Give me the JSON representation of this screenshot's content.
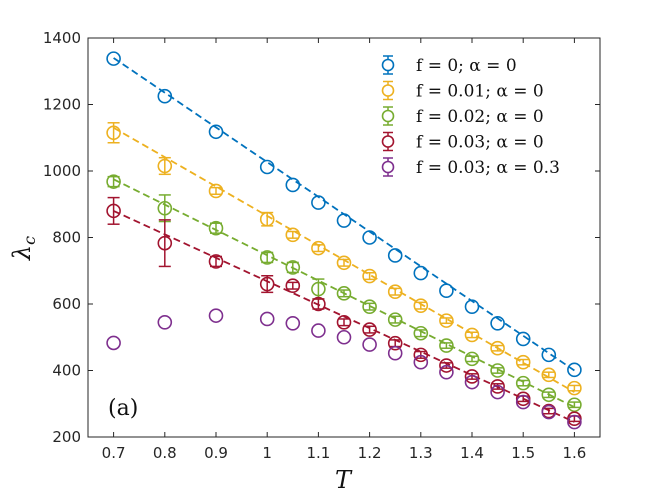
{
  "chart_data": {
    "type": "scatter",
    "panel_label": "(a)",
    "xlabel": "T",
    "ylabel": "λc",
    "xlim": [
      0.65,
      1.65
    ],
    "ylim": [
      200,
      1400
    ],
    "xticks": [
      0.7,
      0.8,
      0.9,
      1,
      1.1,
      1.2,
      1.3,
      1.4,
      1.5,
      1.6
    ],
    "xtick_labels": [
      "0.7",
      "0.8",
      "0.9",
      "1",
      "1.1",
      "1.2",
      "1.3",
      "1.4",
      "1.5",
      "1.6"
    ],
    "yticks": [
      200,
      400,
      600,
      800,
      1000,
      1200,
      1400
    ],
    "ytick_labels": [
      "200",
      "400",
      "600",
      "800",
      "1000",
      "1200",
      "1400"
    ],
    "legend_position": "top-right",
    "series": [
      {
        "name": "f = 0; α = 0",
        "color": "#0072BD",
        "fit_line": [
          [
            0.7,
            1340
          ],
          [
            1.6,
            400
          ]
        ],
        "x": [
          0.7,
          0.8,
          0.9,
          1.0,
          1.05,
          1.1,
          1.15,
          1.2,
          1.25,
          1.3,
          1.35,
          1.4,
          1.45,
          1.5,
          1.55,
          1.6
        ],
        "y": [
          1338,
          1225,
          1118,
          1012,
          958,
          905,
          851,
          800,
          746,
          693,
          640,
          592,
          542,
          495,
          447,
          402
        ],
        "err": [
          0,
          0,
          0,
          0,
          0,
          0,
          0,
          0,
          0,
          0,
          0,
          0,
          0,
          0,
          0,
          0
        ]
      },
      {
        "name": "f = 0.01; α = 0",
        "color": "#EDB120",
        "fit_line": [
          [
            0.7,
            1130
          ],
          [
            1.6,
            335
          ]
        ],
        "x": [
          0.7,
          0.8,
          0.9,
          1.0,
          1.05,
          1.1,
          1.15,
          1.2,
          1.25,
          1.3,
          1.35,
          1.4,
          1.45,
          1.5,
          1.55,
          1.6
        ],
        "y": [
          1115,
          1015,
          940,
          855,
          808,
          768,
          724,
          684,
          637,
          595,
          550,
          507,
          467,
          425,
          387,
          347
        ],
        "err": [
          30,
          25,
          10,
          20,
          10,
          10,
          10,
          10,
          10,
          10,
          8,
          8,
          8,
          8,
          8,
          8
        ]
      },
      {
        "name": "f = 0.02; α = 0",
        "color": "#77AC30",
        "fit_line": [
          [
            0.7,
            975
          ],
          [
            1.6,
            290
          ]
        ],
        "x": [
          0.7,
          0.8,
          0.9,
          1.0,
          1.05,
          1.1,
          1.15,
          1.2,
          1.25,
          1.3,
          1.35,
          1.4,
          1.45,
          1.5,
          1.55,
          1.6
        ],
        "y": [
          968,
          888,
          828,
          740,
          710,
          645,
          632,
          592,
          553,
          512,
          475,
          435,
          400,
          362,
          327,
          297
        ],
        "err": [
          15,
          40,
          15,
          15,
          15,
          30,
          10,
          10,
          10,
          10,
          8,
          8,
          8,
          8,
          8,
          8
        ]
      },
      {
        "name": "f = 0.03; α = 0",
        "color": "#A2142F",
        "fit_line": [
          [
            0.7,
            880
          ],
          [
            1.6,
            245
          ]
        ],
        "x": [
          0.7,
          0.8,
          0.9,
          1.0,
          1.05,
          1.1,
          1.15,
          1.2,
          1.25,
          1.3,
          1.35,
          1.4,
          1.45,
          1.5,
          1.55,
          1.6
        ],
        "y": [
          880,
          783,
          728,
          660,
          655,
          600,
          545,
          523,
          482,
          447,
          415,
          382,
          352,
          315,
          278,
          255
        ],
        "err": [
          40,
          70,
          15,
          25,
          10,
          15,
          10,
          10,
          10,
          10,
          8,
          8,
          8,
          8,
          8,
          8
        ]
      },
      {
        "name": "f = 0.03; α = 0.3",
        "color": "#7E2F8E",
        "fit_line": null,
        "x": [
          0.7,
          0.8,
          0.9,
          1.0,
          1.05,
          1.1,
          1.15,
          1.2,
          1.25,
          1.3,
          1.35,
          1.4,
          1.45,
          1.5,
          1.55,
          1.6
        ],
        "y": [
          483,
          545,
          565,
          555,
          542,
          520,
          500,
          478,
          452,
          425,
          395,
          365,
          335,
          305,
          275,
          245
        ],
        "err": [
          0,
          0,
          0,
          0,
          0,
          0,
          0,
          0,
          0,
          0,
          0,
          0,
          0,
          0,
          0,
          0
        ]
      }
    ]
  }
}
